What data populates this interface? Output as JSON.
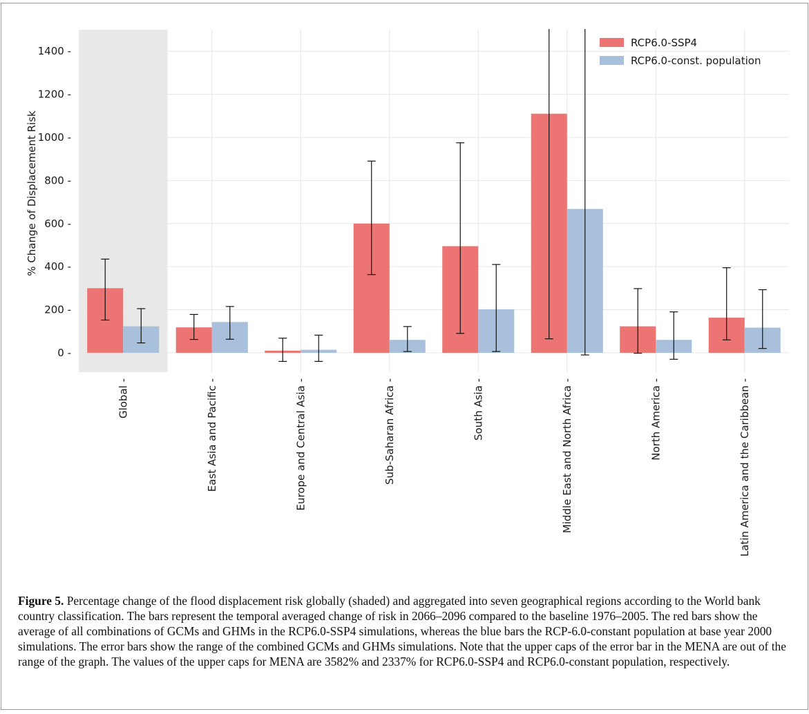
{
  "chart_data": {
    "type": "bar",
    "ylabel": "% Change of Displacement Risk",
    "ylim": [
      -90,
      1500
    ],
    "yticks": [
      0,
      200,
      400,
      600,
      800,
      1000,
      1200,
      1400
    ],
    "grid": true,
    "shaded_category": "Global",
    "shade_color": "#e9e9e9",
    "legend_position": "top-right",
    "categories": [
      "Global",
      "East Asia and Pacific",
      "Europe and Central Asia",
      "Sub-Saharan Africa",
      "South Asia",
      "Middle East and North Africa",
      "North America",
      "Latin America and the Caribbean"
    ],
    "series": [
      {
        "name": "RCP6.0-SSP4",
        "color": "#ec7574",
        "values": [
          300,
          118,
          10,
          600,
          495,
          1110,
          123,
          163
        ],
        "err_low": [
          152,
          62,
          -40,
          363,
          90,
          65,
          -2,
          60
        ],
        "err_high": [
          435,
          178,
          68,
          890,
          975,
          3582,
          298,
          395
        ]
      },
      {
        "name": "RCP6.0-const. population",
        "color": "#a9c0dc",
        "values": [
          123,
          143,
          14,
          60,
          202,
          668,
          60,
          117
        ],
        "err_low": [
          46,
          63,
          -40,
          6,
          6,
          -10,
          -30,
          20
        ],
        "err_high": [
          205,
          215,
          82,
          122,
          410,
          2337,
          190,
          293
        ]
      }
    ]
  },
  "caption": {
    "label": "Figure 5.",
    "text": " Percentage change of the flood displacement risk globally (shaded) and aggregated into seven geographical regions according to the World bank country classification. The bars represent the temporal averaged change of risk in 2066–2096 compared to the baseline 1976–2005. The red bars show the average of all combinations of GCMs and GHMs in the RCP6.0-SSP4 simulations, whereas the blue bars the RCP-6.0-constant population at base year 2000 simulations. The error bars show the range of the combined GCMs and GHMs simulations. Note that the upper caps of the error bar in the MENA are out of the range of the graph. The values of the upper caps for MENA are 3582% and 2337% for RCP6.0-SSP4 and RCP6.0-constant population, respectively."
  }
}
